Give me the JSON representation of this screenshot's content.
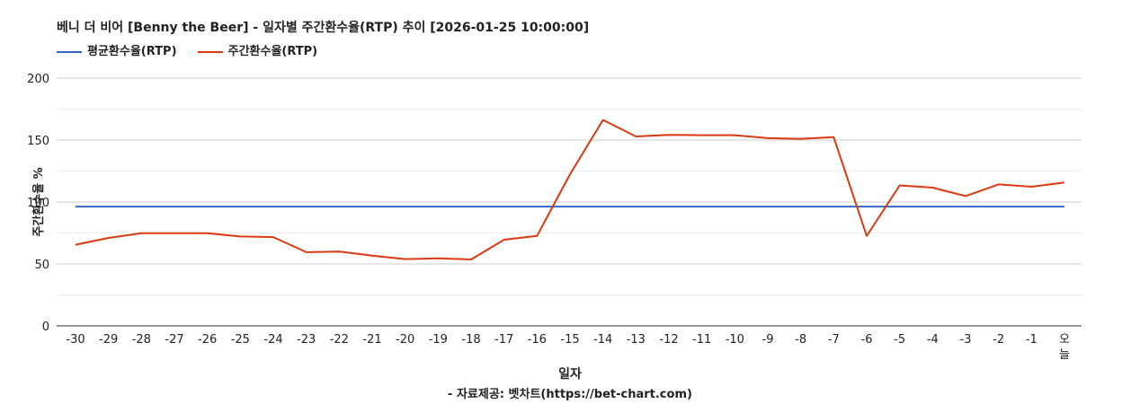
{
  "chart_data": {
    "type": "line",
    "title": "베니 더 비어 [Benny the Beer] - 일자별 주간환수율(RTP) 추이 [2026-01-25 10:00:00]",
    "xlabel": "일자",
    "ylabel": "주간환수율 %",
    "ylim": [
      0,
      200
    ],
    "yticks": [
      0,
      50,
      100,
      150,
      200
    ],
    "grid": true,
    "legend_position": "top-left",
    "categories": [
      "-30",
      "-29",
      "-28",
      "-27",
      "-26",
      "-25",
      "-24",
      "-23",
      "-22",
      "-21",
      "-20",
      "-19",
      "-18",
      "-17",
      "-16",
      "-15",
      "-14",
      "-13",
      "-12",
      "-11",
      "-10",
      "-9",
      "-8",
      "-7",
      "-6",
      "-5",
      "-4",
      "-3",
      "-2",
      "-1",
      "오늘"
    ],
    "series": [
      {
        "name": "평균환수율(RTP)",
        "color": "#3366cc",
        "values": [
          96.3,
          96.3,
          96.3,
          96.3,
          96.3,
          96.3,
          96.3,
          96.3,
          96.3,
          96.3,
          96.3,
          96.3,
          96.3,
          96.3,
          96.3,
          96.3,
          96.3,
          96.3,
          96.3,
          96.3,
          96.3,
          96.3,
          96.3,
          96.3,
          96.3,
          96.3,
          96.3,
          96.3,
          96.3,
          96.3,
          96.3
        ]
      },
      {
        "name": "주간환수율(RTP)",
        "color": "#dc3912",
        "values": [
          65.5,
          71,
          74.8,
          74.8,
          74.8,
          72.2,
          71.7,
          59.5,
          60,
          56.7,
          53.9,
          54.6,
          53.6,
          69.6,
          72.6,
          122.4,
          166.2,
          152.9,
          154.2,
          153.9,
          153.9,
          151.5,
          151,
          152.3,
          72.6,
          113.4,
          111.6,
          104.8,
          114.2,
          112.3,
          115.8
        ]
      }
    ]
  },
  "source_note": "- 자료제공: 벳차트(https://bet-chart.com)"
}
